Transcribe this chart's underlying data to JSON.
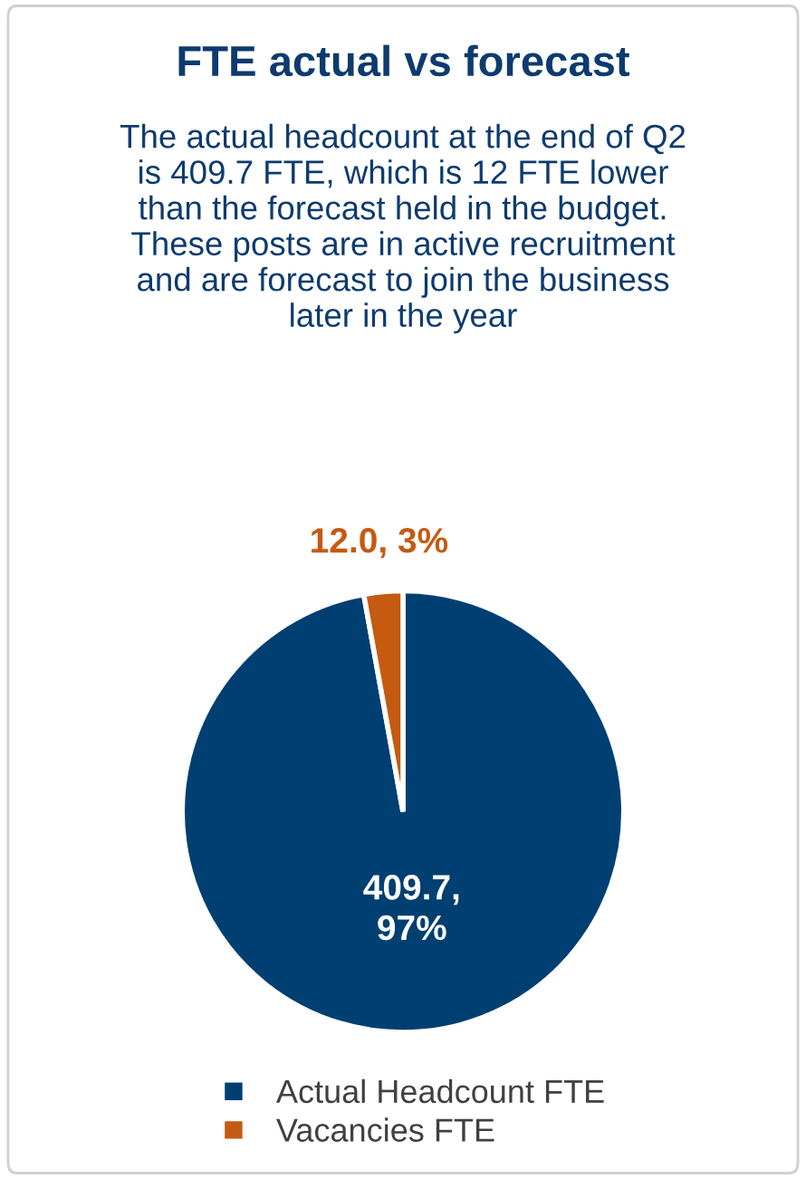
{
  "chart_data": {
    "type": "pie",
    "title": "FTE actual vs forecast",
    "subtitle": "The actual headcount at the end of Q2\nis 409.7 FTE, which is 12 FTE lower\nthan the forecast held in the budget.\nThese posts are in active recruitment\nand are forecast to join the business\nlater in the year",
    "categories": [
      "Actual Headcount FTE",
      "Vacancies FTE"
    ],
    "values": [
      409.7,
      12.0
    ],
    "colors": [
      "#003f72",
      "#c55a11"
    ],
    "value_labels": [
      "409.7,\n97%",
      "12.0, 3%"
    ],
    "legend": "bottom"
  }
}
